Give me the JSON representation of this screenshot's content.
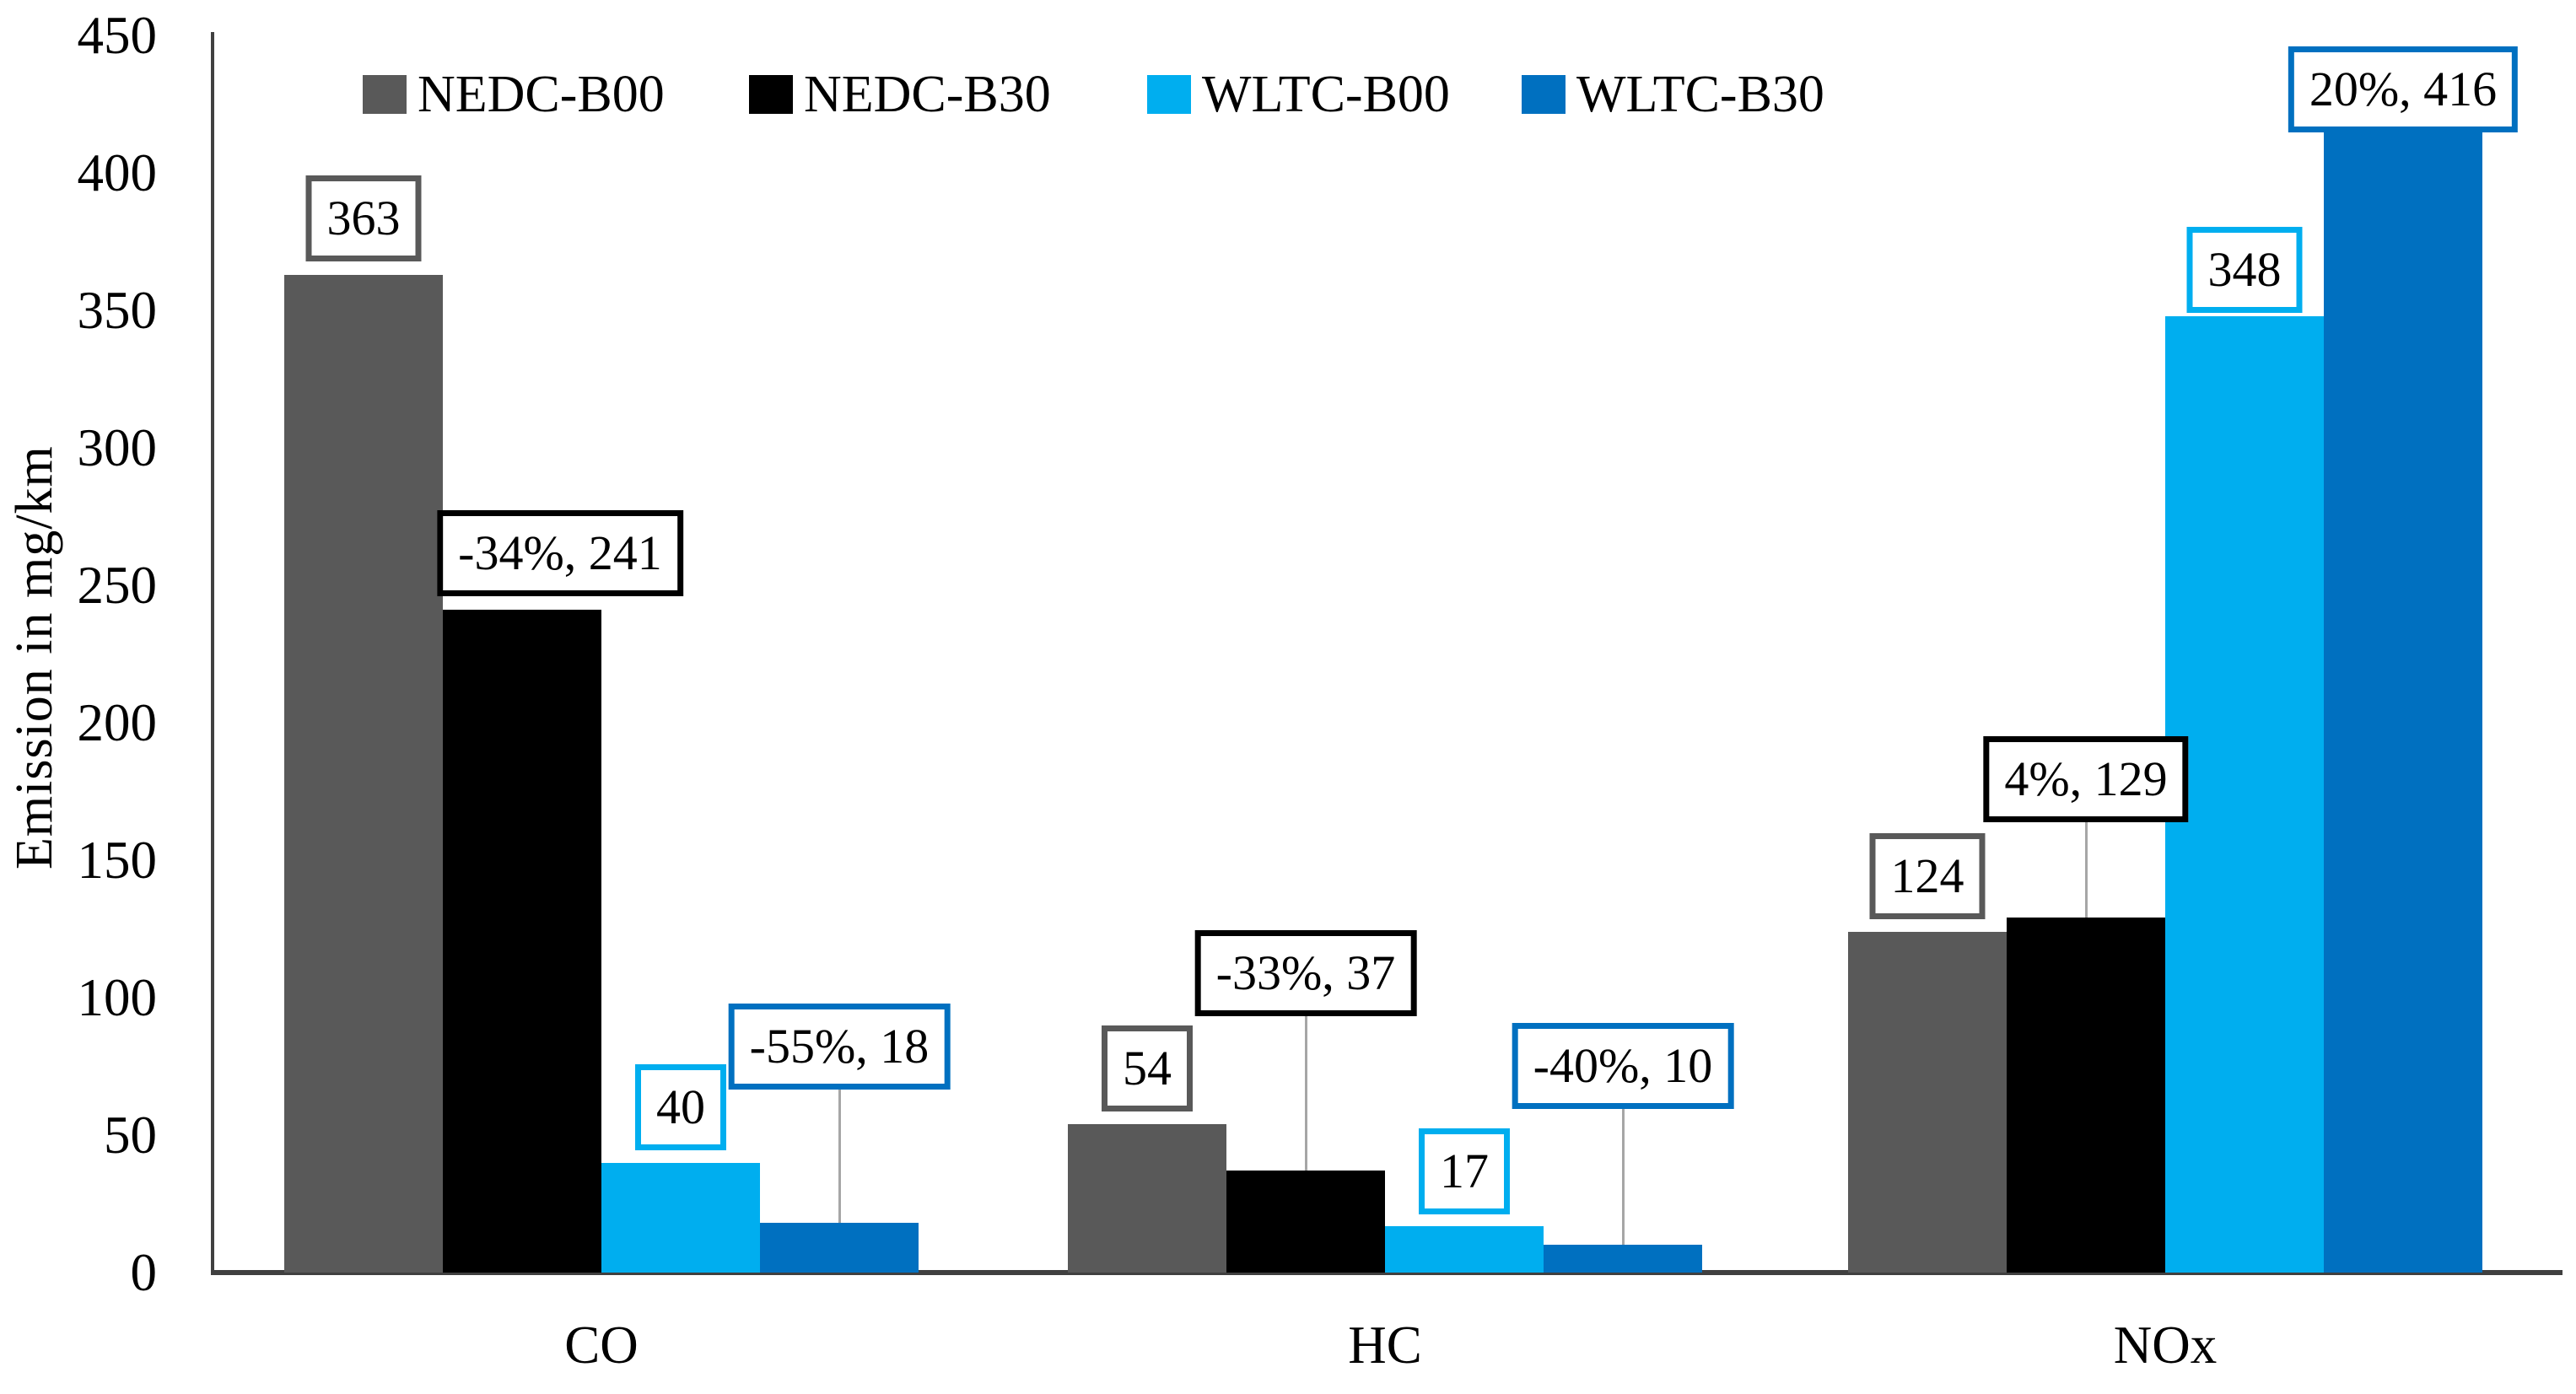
{
  "chart_data": {
    "type": "bar",
    "title": "",
    "xlabel": "",
    "ylabel": "Emission in mg/km",
    "ylim": [
      0,
      450
    ],
    "ytick_step": 50,
    "yticks": [
      0,
      50,
      100,
      150,
      200,
      250,
      300,
      350,
      400,
      450
    ],
    "grid": false,
    "legend_position": "top",
    "categories": [
      "CO",
      "HC",
      "NOx"
    ],
    "series": [
      {
        "name": "NEDC-B00",
        "color": "#595959",
        "values": [
          363,
          54,
          124
        ],
        "labels": [
          {
            "text": "363",
            "style": "plain",
            "gap": 16
          },
          {
            "text": "54",
            "style": "plain",
            "gap": 15
          },
          {
            "text": "124",
            "style": "plain",
            "gap": 15
          }
        ]
      },
      {
        "name": "NEDC-B30",
        "color": "#000000",
        "values": [
          241,
          37,
          129
        ],
        "labels": [
          {
            "text": "-34%, 241",
            "style": "plain",
            "gap": 16,
            "dx": 45
          },
          {
            "text": "-33%, 37",
            "style": "leader",
            "raise": 183
          },
          {
            "text": "4%, 129",
            "style": "leader",
            "raise": 113
          }
        ]
      },
      {
        "name": "WLTC-B00",
        "color": "#00AEEF",
        "values": [
          40,
          17,
          348
        ],
        "labels": [
          {
            "text": "40",
            "style": "plain",
            "gap": 15
          },
          {
            "text": "17",
            "style": "plain",
            "gap": 14
          },
          {
            "text": "348",
            "style": "plain",
            "gap": 4
          }
        ]
      },
      {
        "name": "WLTC-B30",
        "color": "#0070C0",
        "values": [
          18,
          10,
          416
        ],
        "labels": [
          {
            "text": "-55%, 18",
            "style": "leader",
            "raise": 158
          },
          {
            "text": "-40%, 10",
            "style": "leader",
            "raise": 161
          },
          {
            "text": "20%, 416",
            "style": "onbar"
          }
        ]
      }
    ]
  },
  "axis": {
    "y_title": "Emission in mg/km"
  },
  "colors": {
    "axis_line": "#404040",
    "leader_line": "#a6a6a6",
    "label_text": "#000000",
    "background": "#ffffff"
  }
}
